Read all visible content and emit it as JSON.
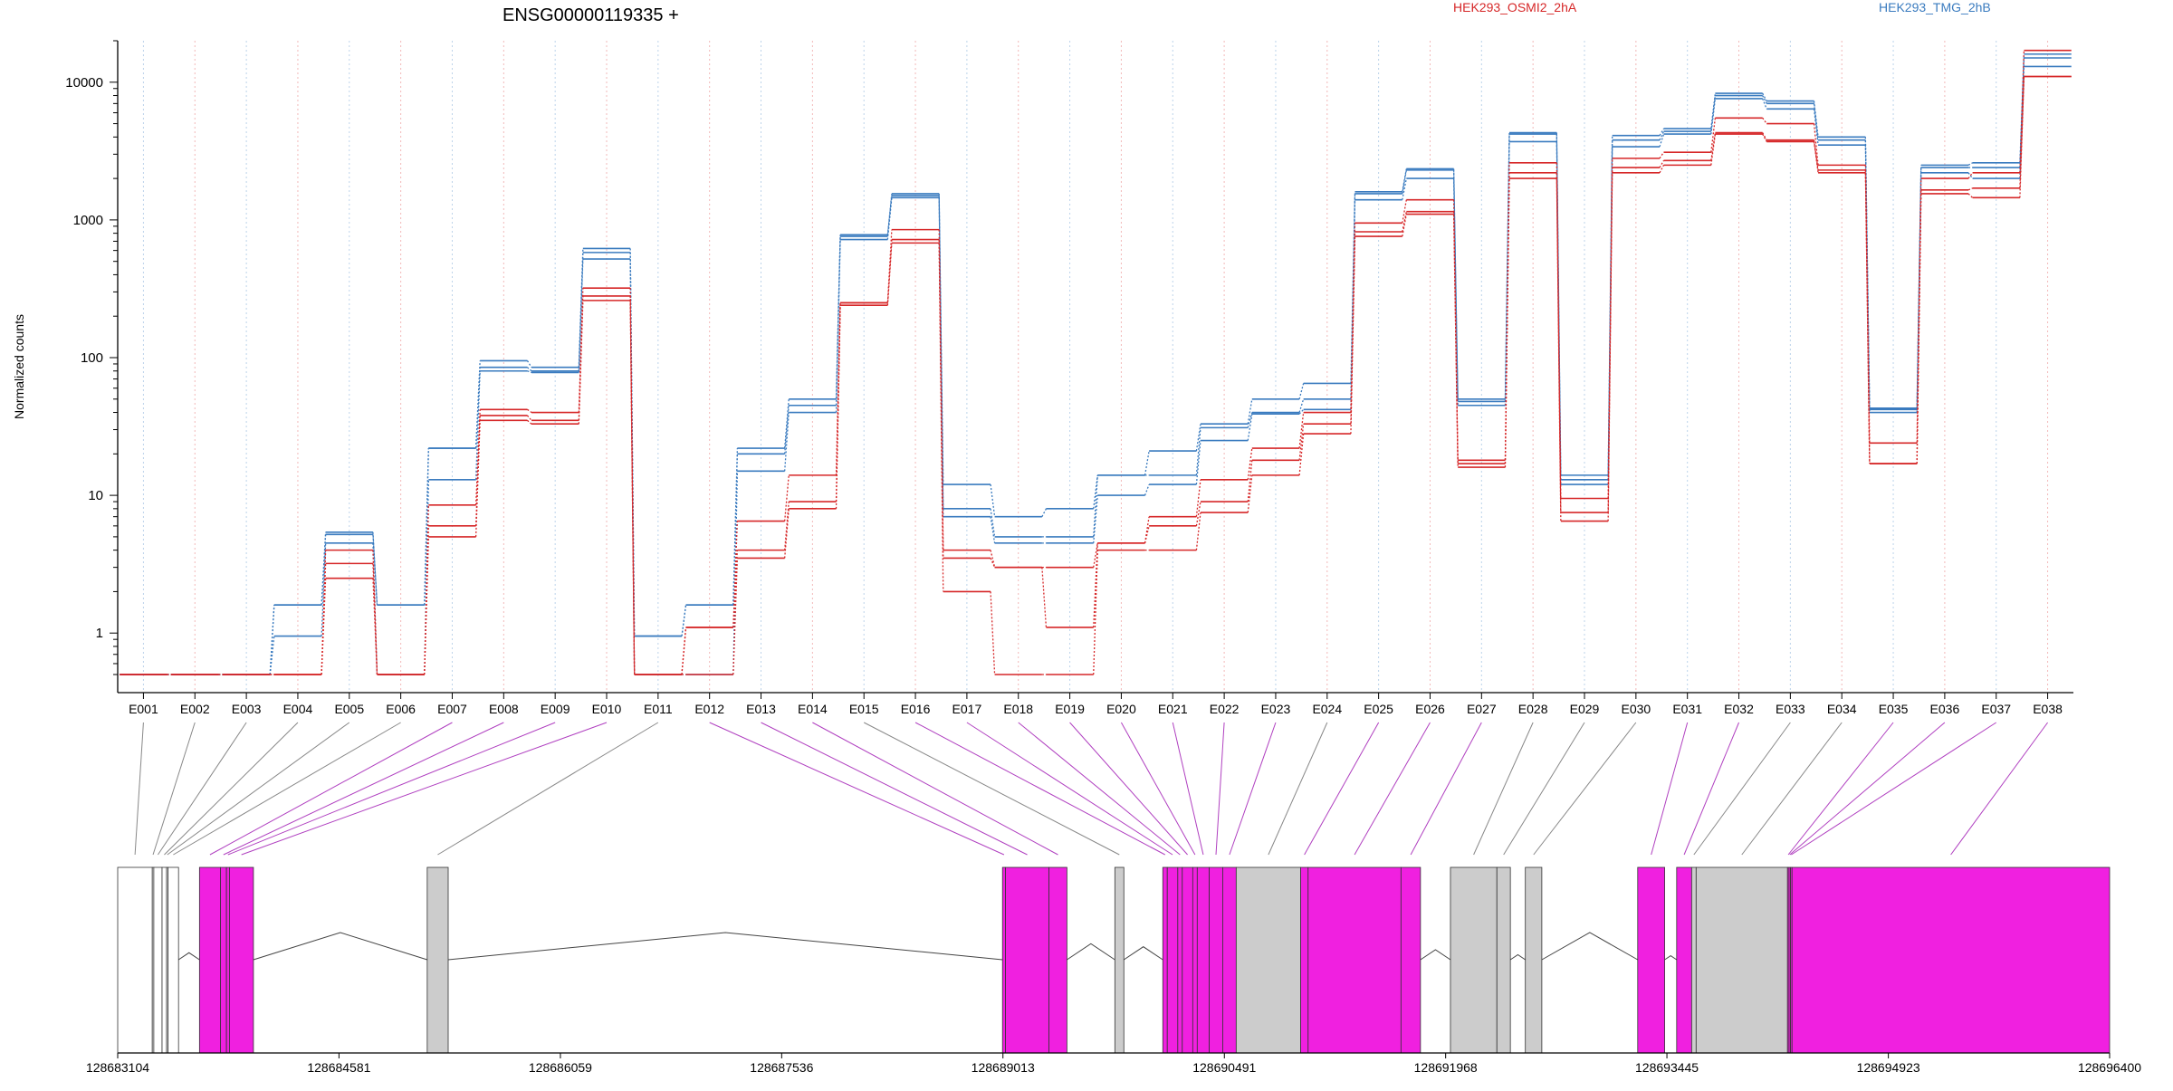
{
  "chart_data": {
    "type": "line",
    "title": "ENSG00000119335 +",
    "ylabel": "Normalized counts",
    "yscale": "log",
    "ylim": [
      0.5,
      20000
    ],
    "yticks": [
      1,
      10,
      100,
      1000,
      10000
    ],
    "ytick_labels": [
      "1",
      "10",
      "100",
      "1000",
      "10000"
    ],
    "legend": [
      {
        "name": "HEK293_OSMI2_2hA",
        "color": "#d62728"
      },
      {
        "name": "HEK293_TMG_2hB",
        "color": "#3a7bbf"
      }
    ],
    "categories": [
      "E001",
      "E002",
      "E003",
      "E004",
      "E005",
      "E006",
      "E007",
      "E008",
      "E009",
      "E010",
      "E011",
      "E012",
      "E013",
      "E014",
      "E015",
      "E016",
      "E017",
      "E018",
      "E019",
      "E020",
      "E021",
      "E022",
      "E023",
      "E024",
      "E025",
      "E026",
      "E027",
      "E028",
      "E029",
      "E030",
      "E031",
      "E032",
      "E033",
      "E034",
      "E035",
      "E036",
      "E037",
      "E038"
    ],
    "series": [
      {
        "color": "#3a7bbf",
        "values": [
          0.5,
          0.5,
          0.5,
          1.6,
          5.4,
          1.6,
          22,
          95,
          85,
          620,
          0.95,
          1.6,
          22,
          50,
          780,
          1550,
          12,
          7,
          8,
          14,
          21,
          33,
          50,
          65,
          1600,
          2350,
          50,
          4300,
          14,
          4100,
          4600,
          8300,
          7300,
          4000,
          43,
          2500,
          2600,
          16000
        ]
      },
      {
        "color": "#3a7bbf",
        "values": [
          0.5,
          0.5,
          0.5,
          1.6,
          5.2,
          1.6,
          22,
          85,
          80,
          580,
          0.95,
          1.6,
          20,
          45,
          760,
          1500,
          8,
          5,
          5,
          14,
          14,
          31,
          40,
          50,
          1550,
          2300,
          48,
          4200,
          13,
          3800,
          4400,
          8000,
          7000,
          3800,
          42,
          2400,
          2400,
          15000
        ]
      },
      {
        "color": "#3a7bbf",
        "values": [
          0.5,
          0.5,
          0.5,
          0.95,
          4.5,
          0.5,
          13,
          80,
          78,
          520,
          0.5,
          0.5,
          15,
          40,
          720,
          1450,
          7,
          4.5,
          4.5,
          10,
          12,
          25,
          39,
          42,
          1400,
          2000,
          45,
          3700,
          12,
          3400,
          4200,
          7600,
          6400,
          3500,
          40,
          2200,
          2000,
          13000
        ]
      },
      {
        "color": "#d62728",
        "values": [
          0.5,
          0.5,
          0.5,
          0.5,
          4,
          0.5,
          8.5,
          42,
          40,
          320,
          0.5,
          1.1,
          6.5,
          14,
          250,
          850,
          4,
          3,
          3,
          4.5,
          7,
          13,
          22,
          40,
          950,
          1400,
          18,
          2600,
          9.5,
          2800,
          3100,
          5500,
          5000,
          2500,
          24,
          2000,
          2200,
          17000
        ]
      },
      {
        "color": "#d62728",
        "values": [
          0.5,
          0.5,
          0.5,
          0.5,
          3.2,
          0.5,
          6,
          38,
          35,
          280,
          0.5,
          1.1,
          4,
          9,
          250,
          720,
          3.5,
          3,
          1.1,
          4.5,
          6,
          9,
          18,
          33,
          820,
          1150,
          17,
          2200,
          7.5,
          2400,
          2700,
          4300,
          3800,
          2300,
          17,
          1650,
          1700,
          11000
        ]
      },
      {
        "color": "#d62728",
        "values": [
          0.5,
          0.5,
          0.5,
          0.5,
          2.5,
          0.5,
          5,
          35,
          33,
          260,
          0.5,
          0.5,
          3.5,
          8,
          240,
          680,
          2,
          0.5,
          0.5,
          4,
          4,
          7.5,
          14,
          28,
          760,
          1100,
          16,
          2000,
          6.5,
          2200,
          2500,
          4200,
          3700,
          2200,
          17,
          1550,
          1450,
          11000
        ]
      }
    ],
    "genome_axis": {
      "ticks": [
        "128683104",
        "128684581",
        "128686059",
        "128687536",
        "128689013",
        "128690491",
        "128691968",
        "128693445",
        "128694923",
        "128696400"
      ]
    },
    "exons": [
      {
        "id": "E001",
        "start": 128683104,
        "end": 128683335,
        "color": "#ffffff"
      },
      {
        "id": "E002",
        "start": 128683335,
        "end": 128683345,
        "color": "#ffffff"
      },
      {
        "id": "E003",
        "start": 128683345,
        "end": 128683400,
        "color": "#ffffff"
      },
      {
        "id": "E004",
        "start": 128683400,
        "end": 128683430,
        "color": "#ffffff"
      },
      {
        "id": "E005",
        "start": 128683430,
        "end": 128683440,
        "color": "#ffffff"
      },
      {
        "id": "E006",
        "start": 128683440,
        "end": 128683510,
        "color": "#ffffff"
      },
      {
        "id": "E007",
        "start": 128683650,
        "end": 128683790,
        "color": "#f020e0"
      },
      {
        "id": "E008",
        "start": 128683790,
        "end": 128683830,
        "color": "#f020e0"
      },
      {
        "id": "E009",
        "start": 128683830,
        "end": 128683850,
        "color": "#f020e0"
      },
      {
        "id": "E010",
        "start": 128683850,
        "end": 128684010,
        "color": "#f020e0"
      },
      {
        "id": "E011",
        "start": 128685170,
        "end": 128685310,
        "color": "#cccccc"
      },
      {
        "id": "E012",
        "start": 128689010,
        "end": 128689030,
        "color": "#f020e0"
      },
      {
        "id": "E013",
        "start": 128689030,
        "end": 128689320,
        "color": "#f020e0"
      },
      {
        "id": "E014",
        "start": 128689320,
        "end": 128689440,
        "color": "#f020e0"
      },
      {
        "id": "E015",
        "start": 128689760,
        "end": 128689820,
        "color": "#cccccc"
      },
      {
        "id": "E016",
        "start": 128690080,
        "end": 128690110,
        "color": "#f020e0"
      },
      {
        "id": "E017",
        "start": 128690110,
        "end": 128690180,
        "color": "#f020e0"
      },
      {
        "id": "E018",
        "start": 128690180,
        "end": 128690210,
        "color": "#f020e0"
      },
      {
        "id": "E019",
        "start": 128690210,
        "end": 128690280,
        "color": "#f020e0"
      },
      {
        "id": "E020",
        "start": 128690280,
        "end": 128690310,
        "color": "#f020e0"
      },
      {
        "id": "E021",
        "start": 128690310,
        "end": 128690390,
        "color": "#f020e0"
      },
      {
        "id": "E022",
        "start": 128690390,
        "end": 128690480,
        "color": "#f020e0"
      },
      {
        "id": "E023",
        "start": 128690480,
        "end": 128690570,
        "color": "#f020e0"
      },
      {
        "id": "E024",
        "start": 128690570,
        "end": 128691000,
        "color": "#cccccc"
      },
      {
        "id": "E025",
        "start": 128691000,
        "end": 128691050,
        "color": "#f020e0"
      },
      {
        "id": "E026",
        "start": 128691050,
        "end": 128691670,
        "color": "#f020e0"
      },
      {
        "id": "E027",
        "start": 128691670,
        "end": 128691800,
        "color": "#f020e0"
      },
      {
        "id": "E028",
        "start": 128692000,
        "end": 128692310,
        "color": "#cccccc"
      },
      {
        "id": "E029",
        "start": 128692310,
        "end": 128692400,
        "color": "#cccccc"
      },
      {
        "id": "E030",
        "start": 128692500,
        "end": 128692610,
        "color": "#cccccc"
      },
      {
        "id": "E031",
        "start": 128693250,
        "end": 128693430,
        "color": "#f020e0"
      },
      {
        "id": "E032",
        "start": 128693510,
        "end": 128693610,
        "color": "#f020e0"
      },
      {
        "id": "E033",
        "start": 128693610,
        "end": 128693640,
        "color": "#cccccc"
      },
      {
        "id": "E034",
        "start": 128693640,
        "end": 128694250,
        "color": "#cccccc"
      },
      {
        "id": "E035",
        "start": 128694250,
        "end": 128694260,
        "color": "#f020e0"
      },
      {
        "id": "E036",
        "start": 128694260,
        "end": 128694270,
        "color": "#f020e0"
      },
      {
        "id": "E037",
        "start": 128694270,
        "end": 128694280,
        "color": "#f020e0"
      },
      {
        "id": "E038",
        "start": 128694280,
        "end": 128696400,
        "color": "#f020e0"
      }
    ],
    "grid": true
  }
}
